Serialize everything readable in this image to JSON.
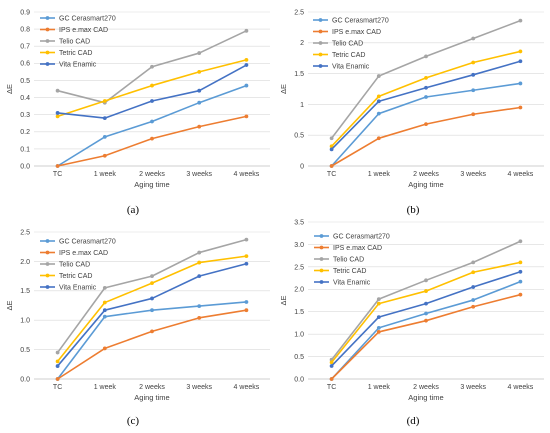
{
  "series_colors": {
    "GC Cerasmart270": "#5b9bd5",
    "IPS e.max CAD": "#ed7d31",
    "Telio CAD": "#a5a5a5",
    "Tetric CAD": "#ffc000",
    "Vita Enamic": "#4472c4"
  },
  "chart_data": [
    {
      "type": "line",
      "panel_label": "(a)",
      "categories": [
        "TC",
        "1 week",
        "2 weeks",
        "3 weeks",
        "4 weeks"
      ],
      "xlabel": "Aging time",
      "ylabel": "ΔE",
      "ylim": [
        0,
        0.9
      ],
      "yticks": [
        "0.0",
        "0.1",
        "0.2",
        "0.3",
        "0.4",
        "0.5",
        "0.6",
        "0.7",
        "0.8",
        "0.9"
      ],
      "grid": "horizontal",
      "legend": "top-left",
      "series": [
        {
          "name": "GC Cerasmart270",
          "values": [
            0.0,
            0.17,
            0.26,
            0.37,
            0.47
          ]
        },
        {
          "name": "IPS e.max CAD",
          "values": [
            0.0,
            0.06,
            0.16,
            0.23,
            0.29
          ]
        },
        {
          "name": "Telio CAD",
          "values": [
            0.44,
            0.37,
            0.58,
            0.66,
            0.79
          ]
        },
        {
          "name": "Tetric CAD",
          "values": [
            0.29,
            0.38,
            0.47,
            0.55,
            0.62
          ]
        },
        {
          "name": "Vita Enamic",
          "values": [
            0.31,
            0.28,
            0.38,
            0.44,
            0.59
          ]
        }
      ]
    },
    {
      "type": "line",
      "panel_label": "(b)",
      "categories": [
        "TC",
        "1 week",
        "2 weeks",
        "3 weeks",
        "4 weeks"
      ],
      "xlabel": "Aging time",
      "ylabel": "ΔE",
      "ylim": [
        0,
        2.5
      ],
      "yticks": [
        "0",
        "0.5",
        "1",
        "1.5",
        "2",
        "2.5"
      ],
      "grid": "horizontal",
      "legend": "top-left",
      "series": [
        {
          "name": "GC Cerasmart270",
          "values": [
            0.0,
            0.85,
            1.12,
            1.23,
            1.34
          ]
        },
        {
          "name": "IPS e.max CAD",
          "values": [
            0.0,
            0.45,
            0.68,
            0.84,
            0.95
          ]
        },
        {
          "name": "Telio CAD",
          "values": [
            0.45,
            1.46,
            1.78,
            2.07,
            2.36
          ]
        },
        {
          "name": "Tetric CAD",
          "values": [
            0.32,
            1.13,
            1.43,
            1.68,
            1.86
          ]
        },
        {
          "name": "Vita Enamic",
          "values": [
            0.27,
            1.05,
            1.27,
            1.48,
            1.7
          ]
        }
      ]
    },
    {
      "type": "line",
      "panel_label": "(c)",
      "categories": [
        "TC",
        "1 week",
        "2 weeks",
        "3 weeks",
        "4 weeks"
      ],
      "xlabel": "Aging time",
      "ylabel": "ΔE",
      "ylim": [
        0,
        2.5
      ],
      "yticks": [
        "0.0",
        "0.5",
        "1.0",
        "1.5",
        "2.0",
        "2.5"
      ],
      "grid": "horizontal",
      "legend": "top-left",
      "series": [
        {
          "name": "GC Cerasmart270",
          "values": [
            0.0,
            1.06,
            1.17,
            1.24,
            1.31
          ]
        },
        {
          "name": "IPS e.max CAD",
          "values": [
            0.0,
            0.52,
            0.81,
            1.04,
            1.17
          ]
        },
        {
          "name": "Telio CAD",
          "values": [
            0.45,
            1.55,
            1.75,
            2.15,
            2.37
          ]
        },
        {
          "name": "Tetric CAD",
          "values": [
            0.3,
            1.3,
            1.63,
            1.98,
            2.09
          ]
        },
        {
          "name": "Vita Enamic",
          "values": [
            0.22,
            1.17,
            1.37,
            1.75,
            1.96
          ]
        }
      ]
    },
    {
      "type": "line",
      "panel_label": "(d)",
      "categories": [
        "TC",
        "1 week",
        "2 weeks",
        "3 weeks",
        "4 weeks"
      ],
      "xlabel": "Aging time",
      "ylabel": "ΔE",
      "ylim": [
        0,
        3.5
      ],
      "yticks": [
        "0.0",
        "0.5",
        "1.0",
        "1.5",
        "2.0",
        "2.5",
        "3.0",
        "3.5"
      ],
      "grid": "horizontal",
      "legend": "top-left",
      "series": [
        {
          "name": "GC Cerasmart270",
          "values": [
            0.0,
            1.14,
            1.46,
            1.76,
            2.17
          ]
        },
        {
          "name": "IPS e.max CAD",
          "values": [
            0.0,
            1.05,
            1.3,
            1.61,
            1.88
          ]
        },
        {
          "name": "Telio CAD",
          "values": [
            0.43,
            1.78,
            2.2,
            2.6,
            3.07
          ]
        },
        {
          "name": "Tetric CAD",
          "values": [
            0.37,
            1.68,
            1.96,
            2.38,
            2.6
          ]
        },
        {
          "name": "Vita Enamic",
          "values": [
            0.29,
            1.38,
            1.68,
            2.05,
            2.39
          ]
        }
      ]
    }
  ]
}
